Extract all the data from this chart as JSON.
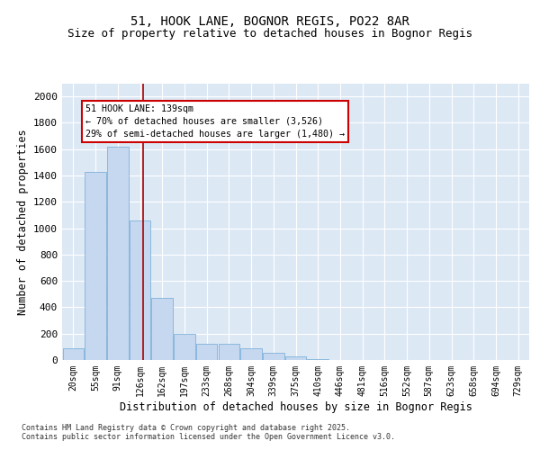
{
  "title_line1": "51, HOOK LANE, BOGNOR REGIS, PO22 8AR",
  "title_line2": "Size of property relative to detached houses in Bognor Regis",
  "xlabel": "Distribution of detached houses by size in Bognor Regis",
  "ylabel": "Number of detached properties",
  "categories": [
    "20sqm",
    "55sqm",
    "91sqm",
    "126sqm",
    "162sqm",
    "197sqm",
    "233sqm",
    "268sqm",
    "304sqm",
    "339sqm",
    "375sqm",
    "410sqm",
    "446sqm",
    "481sqm",
    "516sqm",
    "552sqm",
    "587sqm",
    "623sqm",
    "658sqm",
    "694sqm",
    "729sqm"
  ],
  "values": [
    90,
    1430,
    1620,
    1060,
    470,
    200,
    120,
    120,
    90,
    55,
    30,
    10,
    0,
    0,
    0,
    0,
    0,
    0,
    0,
    0,
    0
  ],
  "bar_color": "#c5d8f0",
  "bar_edge_color": "#6fa8d4",
  "background_color": "#dde8f5",
  "grid_color": "#ffffff",
  "vline_x_index": 3,
  "vline_x_offset": 0.15,
  "annotation_text": "51 HOOK LANE: 139sqm\n← 70% of detached houses are smaller (3,526)\n29% of semi-detached houses are larger (1,480) →",
  "annotation_box_color": "#ffffff",
  "annotation_box_edge": "#cc0000",
  "vline_color": "#aa0000",
  "ylim": [
    0,
    2100
  ],
  "yticks": [
    0,
    200,
    400,
    600,
    800,
    1000,
    1200,
    1400,
    1600,
    1800,
    2000
  ],
  "footer_line1": "Contains HM Land Registry data © Crown copyright and database right 2025.",
  "footer_line2": "Contains public sector information licensed under the Open Government Licence v3.0.",
  "title_fontsize": 10,
  "subtitle_fontsize": 9,
  "tick_fontsize": 7,
  "axis_label_fontsize": 8.5,
  "fig_bg": "#ffffff"
}
